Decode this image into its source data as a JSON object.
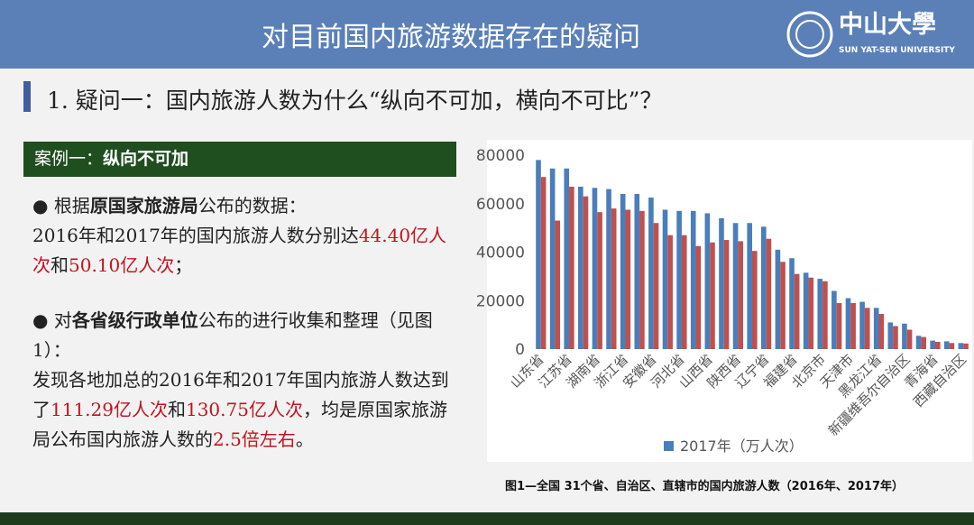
{
  "header": {
    "title": "对目前国内旅游数据存在的疑问",
    "logo_name": "中山大學",
    "logo_en": "SUN YAT-SEN UNIVERSITY"
  },
  "heading": "1. 疑问一：国内旅游人数为什么“纵向不可加，横向不可比”？",
  "case_box": {
    "label": "案例一：",
    "title": "纵向不可加"
  },
  "body": {
    "p1": [
      "根据",
      "原国家旅游局",
      "公布的数据："
    ],
    "p2": [
      "2016年和2017年的国内旅游人数分别达",
      "44.40亿人次",
      "和",
      "50.10亿人次",
      "；"
    ],
    "p3": [
      "对",
      "各省级行政单位",
      "公布的进行收集和整理（见图1）："
    ],
    "p4": [
      "发现各地加总的2016年和2017年国内旅游人数达到了",
      "111.29亿人次",
      "和",
      "130.75亿人次",
      "，均是原国家旅游局公布国内旅游人数的",
      "2.5倍左右",
      "。"
    ]
  },
  "caption": "图1—全国 31个省、自治区、直辖市的国内旅游人数（2016年、2017年）",
  "chart_data": {
    "type": "bar",
    "categories": [
      "山东省",
      null,
      "江苏省",
      null,
      "湖南省",
      null,
      "浙江省",
      null,
      "安徽省",
      null,
      "河北省",
      null,
      "山西省",
      null,
      "陕西省",
      null,
      "辽宁省",
      null,
      "福建省",
      null,
      "北京市",
      null,
      "天津市",
      null,
      "黑龙江省",
      null,
      "新疆维吾尔自治区",
      null,
      "青海省",
      null,
      "西藏自治区"
    ],
    "series": [
      {
        "name": "2017年（万人次）",
        "color": "#4a7ebb",
        "values": [
          78000,
          74500,
          74500,
          67000,
          66500,
          66000,
          64000,
          64000,
          62500,
          57500,
          57000,
          57000,
          56000,
          54000,
          52000,
          52000,
          50500,
          41000,
          37500,
          31500,
          29000,
          24000,
          21000,
          19500,
          17000,
          11000,
          10500,
          5500,
          3500,
          3200,
          2500
        ]
      },
      {
        "color": "#c0504d",
        "values": [
          71000,
          53000,
          67000,
          63000,
          56500,
          58000,
          57500,
          57000,
          52000,
          47000,
          47000,
          42500,
          44000,
          45000,
          44500,
          40500,
          45500,
          36000,
          31000,
          29500,
          28000,
          19000,
          19000,
          17000,
          14500,
          9500,
          8000,
          5000,
          3000,
          2500,
          2300
        ]
      }
    ],
    "ylim": [
      0,
      80000
    ],
    "yticks": [
      0,
      20000,
      40000,
      60000,
      80000
    ],
    "legend": "bottom"
  }
}
